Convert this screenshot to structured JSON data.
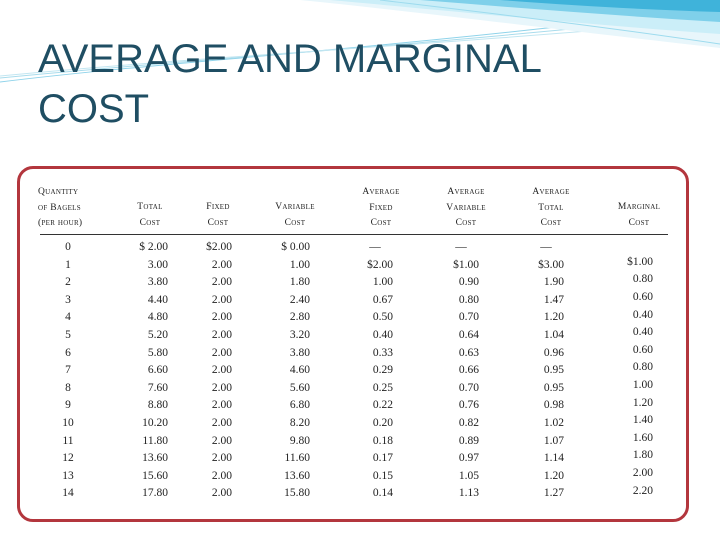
{
  "title_lines": [
    "AVERAGE AND MARGINAL",
    "COST"
  ],
  "colors": {
    "title": "#1f4e63",
    "frame": "#b3363d",
    "swoosh": "#5fc3e0"
  },
  "table": {
    "headers": [
      [
        "Quantity",
        "of Bagels",
        "(per hour)"
      ],
      [
        "Total",
        "Cost"
      ],
      [
        "Fixed",
        "Cost"
      ],
      [
        "Variable",
        "Cost"
      ],
      [
        "Average",
        "Fixed",
        "Cost"
      ],
      [
        "Average",
        "Variable",
        "Cost"
      ],
      [
        "Average",
        "Total",
        "Cost"
      ],
      [
        "Marginal",
        "Cost"
      ]
    ],
    "rows": [
      [
        "0",
        "$ 2.00",
        "$2.00",
        "$ 0.00",
        "—",
        "—",
        "—"
      ],
      [
        "1",
        "3.00",
        "2.00",
        "1.00",
        "$2.00",
        "$1.00",
        "$3.00"
      ],
      [
        "2",
        "3.80",
        "2.00",
        "1.80",
        "1.00",
        "0.90",
        "1.90"
      ],
      [
        "3",
        "4.40",
        "2.00",
        "2.40",
        "0.67",
        "0.80",
        "1.47"
      ],
      [
        "4",
        "4.80",
        "2.00",
        "2.80",
        "0.50",
        "0.70",
        "1.20"
      ],
      [
        "5",
        "5.20",
        "2.00",
        "3.20",
        "0.40",
        "0.64",
        "1.04"
      ],
      [
        "6",
        "5.80",
        "2.00",
        "3.80",
        "0.33",
        "0.63",
        "0.96"
      ],
      [
        "7",
        "6.60",
        "2.00",
        "4.60",
        "0.29",
        "0.66",
        "0.95"
      ],
      [
        "8",
        "7.60",
        "2.00",
        "5.60",
        "0.25",
        "0.70",
        "0.95"
      ],
      [
        "9",
        "8.80",
        "2.00",
        "6.80",
        "0.22",
        "0.76",
        "0.98"
      ],
      [
        "10",
        "10.20",
        "2.00",
        "8.20",
        "0.20",
        "0.82",
        "1.02"
      ],
      [
        "11",
        "11.80",
        "2.00",
        "9.80",
        "0.18",
        "0.89",
        "1.07"
      ],
      [
        "12",
        "13.60",
        "2.00",
        "11.60",
        "0.17",
        "0.97",
        "1.14"
      ],
      [
        "13",
        "15.60",
        "2.00",
        "13.60",
        "0.15",
        "1.05",
        "1.20"
      ],
      [
        "14",
        "17.80",
        "2.00",
        "15.80",
        "0.14",
        "1.13",
        "1.27"
      ]
    ],
    "marginal_cost": [
      "$1.00",
      "0.80",
      "0.60",
      "0.40",
      "0.40",
      "0.60",
      "0.80",
      "1.00",
      "1.20",
      "1.40",
      "1.60",
      "1.80",
      "2.00",
      "2.20"
    ]
  }
}
